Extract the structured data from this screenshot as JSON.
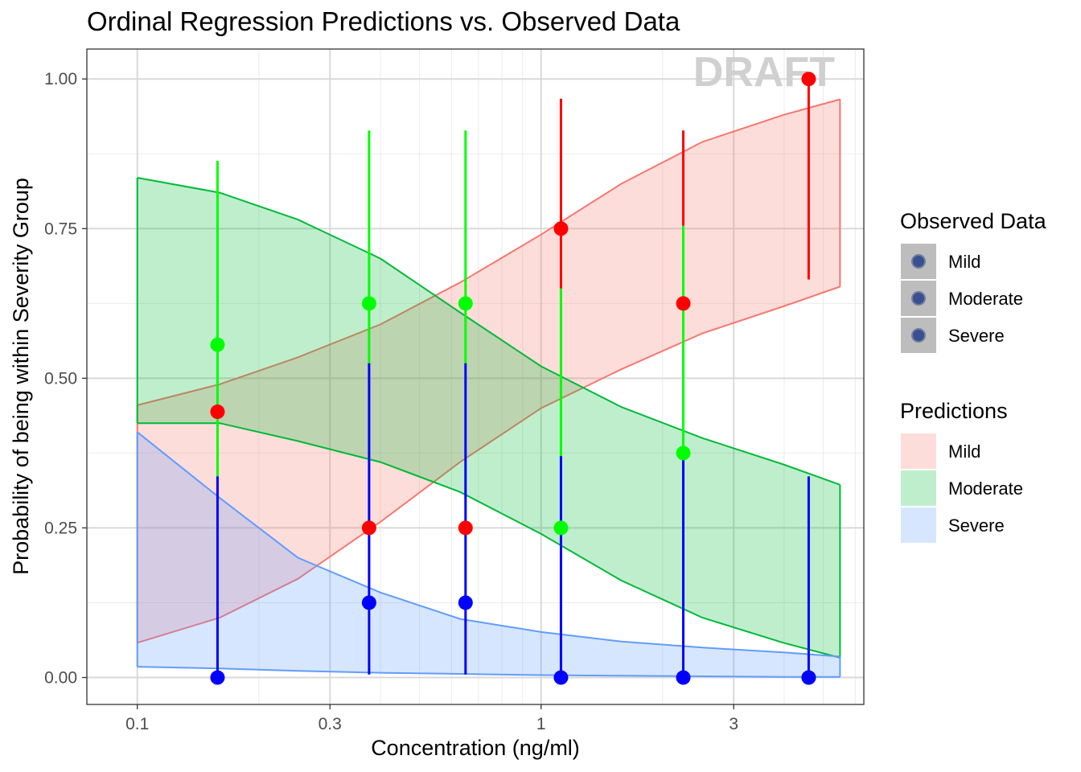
{
  "chart_data": {
    "type": "line",
    "title": "Ordinal Regression Predictions vs. Observed Data",
    "watermark": "DRAFT",
    "xlabel": "Concentration (ng/ml)",
    "ylabel": "Probability of being within Severity Group",
    "x_scale": "log10",
    "xlim": [
      0.075,
      6.3
    ],
    "ylim": [
      -0.045,
      1.05
    ],
    "x_ticks": [
      {
        "value": 0.1,
        "label": "0.1"
      },
      {
        "value": 0.3,
        "label": "0.3"
      },
      {
        "value": 1,
        "label": "1"
      },
      {
        "value": 3,
        "label": "3"
      }
    ],
    "y_ticks": [
      {
        "value": 0,
        "label": "0.00"
      },
      {
        "value": 0.25,
        "label": "0.25"
      },
      {
        "value": 0.5,
        "label": "0.50"
      },
      {
        "value": 0.75,
        "label": "0.75"
      },
      {
        "value": 1,
        "label": "1.00"
      }
    ],
    "grid": true,
    "prediction_x": [
      0.1,
      0.16,
      0.25,
      0.4,
      0.63,
      1.0,
      1.58,
      2.51,
      3.98,
      5.5
    ],
    "predictions": [
      {
        "name": "Mild",
        "fill": "#F8766D",
        "line": "#F8766D",
        "lower": [
          0.058,
          0.1,
          0.165,
          0.26,
          0.36,
          0.45,
          0.515,
          0.575,
          0.62,
          0.653
        ],
        "upper": [
          0.455,
          0.49,
          0.535,
          0.59,
          0.66,
          0.74,
          0.825,
          0.895,
          0.94,
          0.966
        ]
      },
      {
        "name": "Moderate",
        "fill": "#00BA38",
        "line": "#00BA38",
        "lower": [
          0.425,
          0.425,
          0.395,
          0.36,
          0.31,
          0.24,
          0.162,
          0.1,
          0.058,
          0.033
        ],
        "upper": [
          0.835,
          0.81,
          0.765,
          0.7,
          0.61,
          0.52,
          0.452,
          0.4,
          0.356,
          0.322
        ]
      },
      {
        "name": "Severe",
        "fill": "#619CFF",
        "line": "#619CFF",
        "lower": [
          0.018,
          0.015,
          0.011,
          0.008,
          0.006,
          0.004,
          0.003,
          0.002,
          0.001,
          0.001
        ],
        "upper": [
          0.41,
          0.3,
          0.2,
          0.142,
          0.098,
          0.076,
          0.06,
          0.05,
          0.042,
          0.035
        ]
      }
    ],
    "observed": [
      {
        "name": "Mild",
        "color": "#FF0000",
        "points": [
          {
            "x": 0.158,
            "y": 0.444,
            "ymin": 0.0,
            "ymax": 0.0
          },
          {
            "x": 0.375,
            "y": 0.25,
            "ymin": 0.0,
            "ymax": 0.0
          },
          {
            "x": 0.65,
            "y": 0.25,
            "ymin": 0.0,
            "ymax": 0.0
          },
          {
            "x": 1.12,
            "y": 0.75,
            "ymin": 0.65,
            "ymax": 0.967
          },
          {
            "x": 2.25,
            "y": 0.625,
            "ymin": 0.755,
            "ymax": 0.914
          },
          {
            "x": 4.6,
            "y": 1.0,
            "ymin": 0.665,
            "ymax": 1.0
          }
        ]
      },
      {
        "name": "Moderate",
        "color": "#00FF00",
        "points": [
          {
            "x": 0.158,
            "y": 0.556,
            "ymin": 0.336,
            "ymax": 0.863
          },
          {
            "x": 0.375,
            "y": 0.625,
            "ymin": 0.525,
            "ymax": 0.914
          },
          {
            "x": 0.65,
            "y": 0.625,
            "ymin": 0.525,
            "ymax": 0.914
          },
          {
            "x": 1.12,
            "y": 0.25,
            "ymin": 0.37,
            "ymax": 0.65
          },
          {
            "x": 2.25,
            "y": 0.375,
            "ymin": 0.37,
            "ymax": 0.755
          },
          {
            "x": 4.6,
            "y": 0.0,
            "ymin": 0.0,
            "ymax": 0.0
          }
        ]
      },
      {
        "name": "Severe",
        "color": "#0000FF",
        "points": [
          {
            "x": 0.158,
            "y": 0.0,
            "ymin": 0.0,
            "ymax": 0.336
          },
          {
            "x": 0.375,
            "y": 0.125,
            "ymin": 0.005,
            "ymax": 0.525
          },
          {
            "x": 0.65,
            "y": 0.125,
            "ymin": 0.005,
            "ymax": 0.525
          },
          {
            "x": 1.12,
            "y": 0.0,
            "ymin": 0.0,
            "ymax": 0.37
          },
          {
            "x": 2.25,
            "y": 0.0,
            "ymin": 0.0,
            "ymax": 0.37
          },
          {
            "x": 4.6,
            "y": 0.0,
            "ymin": 0.0,
            "ymax": 0.336
          }
        ]
      }
    ],
    "legend": {
      "placement": "right",
      "observed_title": "Observed Data",
      "observed_labels": [
        "Mild",
        "Moderate",
        "Severe"
      ],
      "predictions_title": "Predictions",
      "predictions_labels": [
        "Mild",
        "Moderate",
        "Severe"
      ],
      "observed_key_color": "#3a4f8f"
    }
  }
}
